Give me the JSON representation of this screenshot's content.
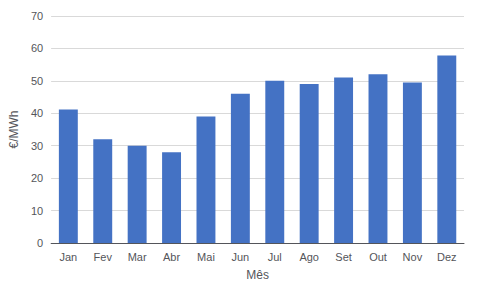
{
  "chart_data": {
    "type": "bar",
    "xlabel": "Mês",
    "ylabel": "€/MWh",
    "categories": [
      "Jan",
      "Fev",
      "Mar",
      "Abr",
      "Mai",
      "Jun",
      "Jul",
      "Ago",
      "Set",
      "Out",
      "Nov",
      "Dez"
    ],
    "values": [
      41.2,
      32.0,
      30.0,
      28.0,
      39.0,
      46.0,
      50.0,
      49.0,
      51.0,
      52.0,
      49.5,
      57.8
    ],
    "color": "#4472C4",
    "ylim": [
      0,
      70
    ],
    "yticks": [
      0,
      10,
      20,
      30,
      40,
      50,
      60,
      70
    ],
    "grid": true
  }
}
